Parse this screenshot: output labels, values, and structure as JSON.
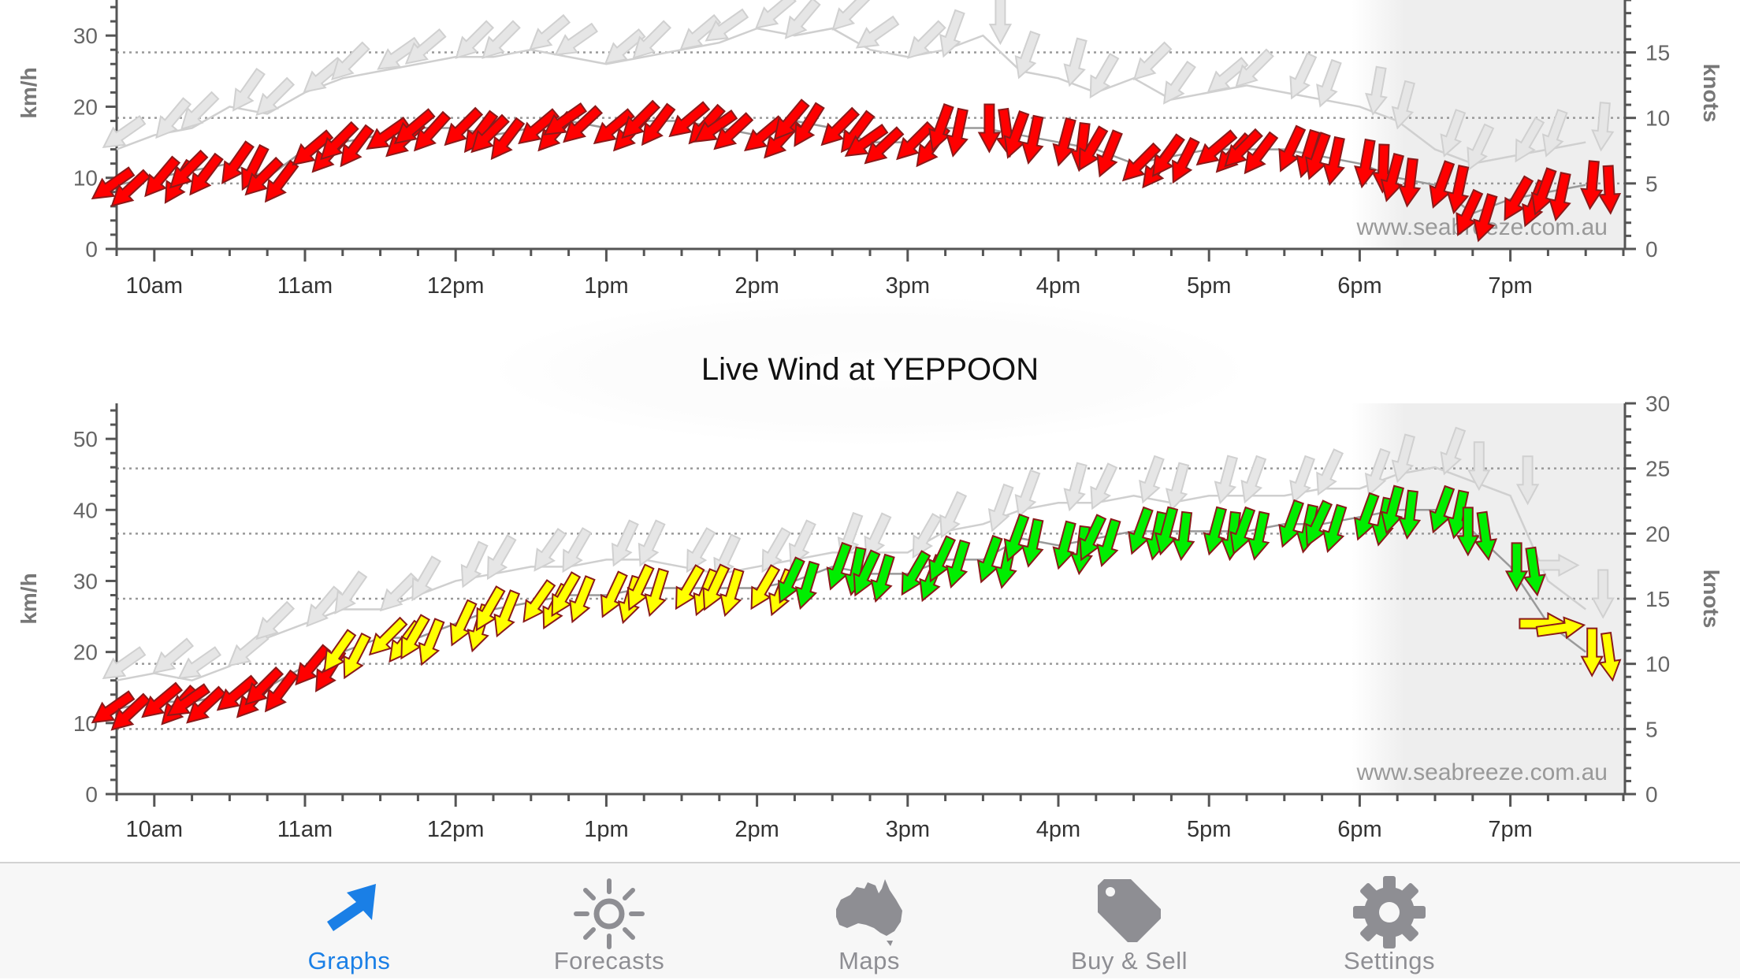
{
  "colors": {
    "light": "#ff0000",
    "moderate": "#ffff00",
    "fresh": "#00ee00",
    "gust": "#e6e6e6",
    "accent": "#1a7fe6",
    "inactive": "#8e8e93"
  },
  "watermark": "www.seabreeze.com.au",
  "chart_data": [
    {
      "type": "line",
      "title": "",
      "ylabel": "km/h",
      "y2label": "knots",
      "ylim": [
        0,
        35
      ],
      "y2lim": [
        0,
        19
      ],
      "yticks": [
        "0",
        "10",
        "20",
        "30"
      ],
      "y2ticks": [
        "0",
        "5",
        "10",
        "15"
      ],
      "xticks": [
        "10am",
        "11am",
        "12pm",
        "1pm",
        "2pm",
        "3pm",
        "4pm",
        "5pm",
        "6pm",
        "7pm"
      ],
      "gridlines_knots": [
        5,
        10,
        15
      ],
      "x": [
        9.75,
        10.0,
        10.25,
        10.5,
        10.75,
        11.0,
        11.25,
        11.5,
        11.75,
        12.0,
        12.25,
        12.5,
        12.75,
        13.0,
        13.25,
        13.5,
        13.75,
        14.0,
        14.25,
        14.5,
        14.75,
        15.0,
        15.25,
        15.5,
        15.75,
        16.0,
        16.25,
        16.5,
        16.75,
        17.0,
        17.25,
        17.5,
        17.75,
        18.0,
        18.25,
        18.5,
        18.75,
        19.0,
        19.25,
        19.5
      ],
      "series": [
        {
          "values": [
            9,
            10,
            11,
            12,
            10,
            14,
            15,
            16,
            17,
            17,
            16,
            17,
            18,
            17,
            18,
            18,
            17,
            16,
            18,
            17,
            15,
            15,
            17,
            17,
            16,
            15,
            14,
            12,
            13,
            14,
            14,
            14,
            13,
            12,
            10,
            9,
            5,
            7,
            8,
            9
          ]
        },
        {
          "values": [
            14,
            16,
            17,
            20,
            19,
            22,
            24,
            25,
            26,
            27,
            27,
            28,
            27,
            26,
            27,
            28,
            29,
            31,
            30,
            31,
            28,
            27,
            28,
            30,
            25,
            24,
            22,
            24,
            21,
            22,
            23,
            22,
            21,
            20,
            18,
            14,
            12,
            13,
            14,
            15
          ]
        }
      ]
    },
    {
      "type": "line",
      "title": "Live Wind at YEPPOON",
      "ylabel": "km/h",
      "y2label": "knots",
      "ylim": [
        0,
        55
      ],
      "y2lim": [
        0,
        30
      ],
      "yticks": [
        "0",
        "10",
        "20",
        "30",
        "40",
        "50"
      ],
      "y2ticks": [
        "0",
        "5",
        "10",
        "15",
        "20",
        "25",
        "30"
      ],
      "xticks": [
        "10am",
        "11am",
        "12pm",
        "1pm",
        "2pm",
        "3pm",
        "4pm",
        "5pm",
        "6pm",
        "7pm"
      ],
      "gridlines_knots": [
        5,
        10,
        15,
        20,
        25
      ],
      "x": [
        9.75,
        10.0,
        10.25,
        10.5,
        10.75,
        11.0,
        11.25,
        11.5,
        11.75,
        12.0,
        12.25,
        12.5,
        12.75,
        13.0,
        13.25,
        13.5,
        13.75,
        14.0,
        14.25,
        14.5,
        14.75,
        15.0,
        15.25,
        15.5,
        15.75,
        16.0,
        16.25,
        16.5,
        16.75,
        17.0,
        17.25,
        17.5,
        17.75,
        18.0,
        18.25,
        18.5,
        18.75,
        19.0,
        19.25,
        19.5
      ],
      "series": [
        {
          "values": [
            12,
            13,
            13,
            14,
            15,
            18,
            20,
            22,
            22,
            24,
            26,
            27,
            28,
            28,
            29,
            29,
            29,
            29,
            30,
            32,
            31,
            31,
            33,
            33,
            36,
            35,
            36,
            37,
            37,
            37,
            37,
            38,
            38,
            39,
            40,
            40,
            37,
            32,
            24,
            20
          ]
        },
        {
          "values": [
            16,
            17,
            16,
            18,
            22,
            24,
            26,
            26,
            28,
            30,
            31,
            32,
            32,
            33,
            33,
            32,
            31,
            32,
            33,
            34,
            34,
            34,
            37,
            38,
            40,
            41,
            41,
            42,
            41,
            42,
            42,
            42,
            43,
            43,
            45,
            46,
            44,
            42,
            30,
            26
          ]
        }
      ]
    }
  ],
  "tabbar": {
    "tabs": [
      {
        "label": "Graphs",
        "icon": "arrow-icon",
        "active": true
      },
      {
        "label": "Forecasts",
        "icon": "sun-icon",
        "active": false
      },
      {
        "label": "Maps",
        "icon": "australia-icon",
        "active": false
      },
      {
        "label": "Buy & Sell",
        "icon": "tag-icon",
        "active": false
      },
      {
        "label": "Settings",
        "icon": "gear-icon",
        "active": false
      }
    ]
  }
}
